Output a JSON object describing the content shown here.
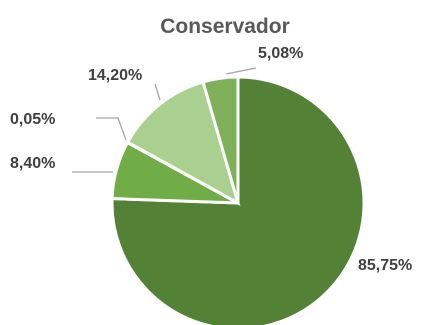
{
  "chart_data": {
    "type": "pie",
    "title": "Conservador",
    "start_angle_deg": 0,
    "direction": "clockwise",
    "slices": [
      {
        "value": 85.75,
        "label": "85,75%",
        "color": "#538135"
      },
      {
        "value": 8.4,
        "label": "8,40%",
        "color": "#70ad47"
      },
      {
        "value": 0.05,
        "label": "0,05%",
        "color": "#8fbc6c"
      },
      {
        "value": 14.2,
        "label": "14,20%",
        "color": "#a9d08e"
      },
      {
        "value": 5.08,
        "label": "5,08%",
        "color": "#7fb05a"
      }
    ],
    "legend": false
  }
}
